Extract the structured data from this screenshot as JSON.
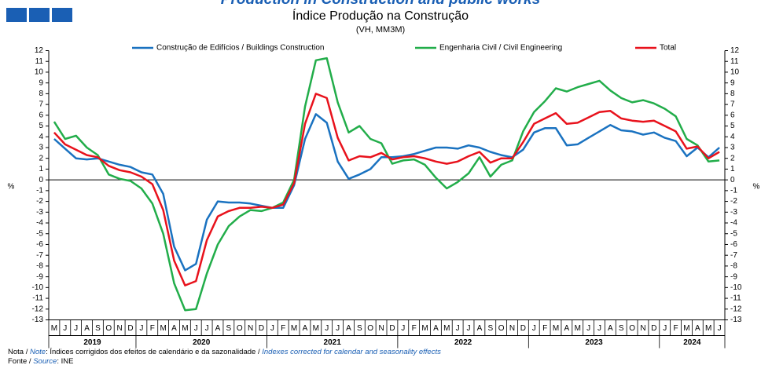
{
  "chart_data": {
    "type": "line",
    "header": "Production in Construction and public works",
    "title": "Índice Produção na Construção",
    "subtitle": "(VH, MM3M)",
    "y_label": "%",
    "y2_label": "%",
    "categories": [
      "M",
      "J",
      "J",
      "A",
      "S",
      "O",
      "N",
      "D",
      "J",
      "F",
      "M",
      "A",
      "M",
      "J",
      "J",
      "A",
      "S",
      "O",
      "N",
      "D",
      "J",
      "F",
      "M",
      "A",
      "M",
      "J",
      "J",
      "A",
      "S",
      "O",
      "N",
      "D",
      "J",
      "F",
      "M",
      "A",
      "M",
      "J",
      "J",
      "A",
      "S",
      "O",
      "N",
      "D",
      "J",
      "F",
      "M",
      "A",
      "M",
      "J",
      "J",
      "A",
      "S",
      "O",
      "N",
      "D",
      "J",
      "F",
      "M",
      "A",
      "M",
      "J"
    ],
    "years": [
      "2019",
      "2020",
      "2021",
      "2022",
      "2023",
      "2024"
    ],
    "ylim": [
      -13,
      12
    ],
    "yticks": [
      12,
      11,
      10,
      9,
      8,
      7,
      6,
      5,
      4,
      3,
      2,
      1,
      0,
      -1,
      -2,
      -3,
      -4,
      -5,
      -6,
      -7,
      -8,
      -9,
      -10,
      -11,
      -12,
      -13
    ],
    "series": [
      {
        "name": "Construção de Edifícios / Buildings Construction",
        "color": "#1a72c0",
        "values": [
          3.8,
          2.9,
          2.0,
          1.9,
          2.0,
          1.7,
          1.4,
          1.2,
          0.7,
          0.5,
          -1.3,
          -6.2,
          -8.4,
          -7.8,
          -3.7,
          -2.0,
          -2.1,
          -2.1,
          -2.2,
          -2.4,
          -2.6,
          -2.6,
          -0.5,
          3.8,
          6.1,
          5.3,
          1.7,
          0.1,
          0.5,
          1.0,
          2.1,
          2.1,
          2.2,
          2.4,
          2.7,
          3.0,
          3.0,
          2.9,
          3.2,
          3.0,
          2.6,
          2.3,
          2.1,
          2.8,
          4.4,
          4.8,
          4.8,
          3.2,
          3.3,
          3.9,
          4.5,
          5.1,
          4.6,
          4.5,
          4.2,
          4.4,
          3.9,
          3.6,
          2.2,
          3.0,
          2.1,
          3.0
        ]
      },
      {
        "name": "Engenharia Civil / Civil Engineering",
        "color": "#22ad4a",
        "values": [
          5.4,
          3.8,
          4.1,
          3.0,
          2.3,
          0.5,
          0.1,
          -0.1,
          -0.8,
          -2.2,
          -5.0,
          -9.6,
          -12.1,
          -12.0,
          -8.7,
          -6.0,
          -4.3,
          -3.4,
          -2.8,
          -2.9,
          -2.6,
          -2.1,
          0.0,
          6.8,
          11.1,
          11.3,
          7.2,
          4.4,
          5.0,
          3.8,
          3.4,
          1.5,
          1.8,
          1.9,
          1.4,
          0.2,
          -0.8,
          -0.2,
          0.6,
          2.1,
          0.3,
          1.4,
          1.8,
          4.5,
          6.3,
          7.3,
          8.5,
          8.2,
          8.6,
          8.9,
          9.2,
          8.3,
          7.6,
          7.2,
          7.4,
          7.1,
          6.6,
          5.9,
          3.8,
          3.2,
          1.7,
          1.8
        ]
      },
      {
        "name": "Total",
        "color": "#e8121c",
        "values": [
          4.4,
          3.3,
          2.8,
          2.3,
          2.1,
          1.3,
          0.9,
          0.7,
          0.3,
          -0.4,
          -2.8,
          -7.5,
          -9.8,
          -9.4,
          -5.6,
          -3.4,
          -2.9,
          -2.6,
          -2.6,
          -2.5,
          -2.6,
          -2.3,
          -0.3,
          5.2,
          8.0,
          7.6,
          3.9,
          1.8,
          2.2,
          2.1,
          2.5,
          1.9,
          2.1,
          2.2,
          2.0,
          1.7,
          1.5,
          1.7,
          2.2,
          2.6,
          1.6,
          2.0,
          2.0,
          3.5,
          5.2,
          5.7,
          6.2,
          5.2,
          5.3,
          5.8,
          6.3,
          6.4,
          5.7,
          5.5,
          5.4,
          5.5,
          5.0,
          4.5,
          2.9,
          3.1,
          2.0,
          2.6
        ]
      }
    ],
    "note": {
      "pt_label": "Nota / ",
      "en_label": "Note",
      "pt_text": ": Índices corrigidos dos efeitos de calendário e da sazonalidade / ",
      "en_text": "Indexes corrected for calendar and seasonality effects"
    },
    "source": {
      "pt_label": "Fonte / ",
      "en_label": "Source",
      "text": ": INE"
    }
  }
}
